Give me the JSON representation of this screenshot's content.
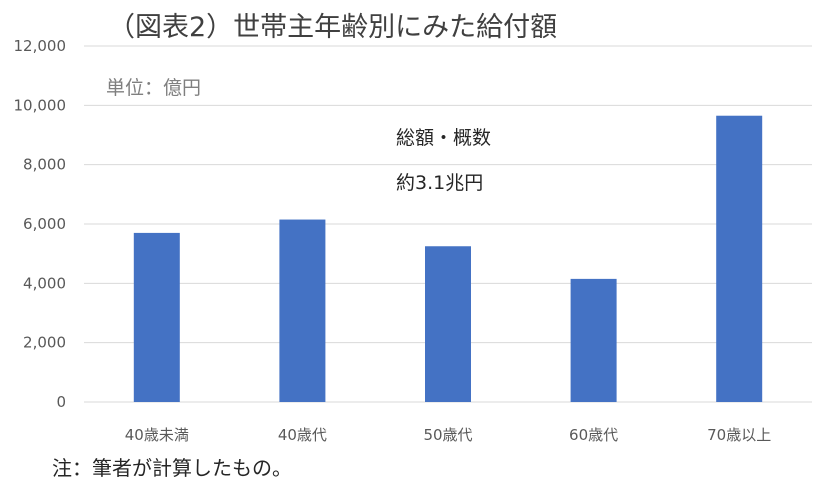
{
  "chart_data": {
    "type": "bar",
    "title": "（図表2）世帯主年齢別にみた給付額",
    "unit_label": "単位：億円",
    "annotation_line1": "総額・概数",
    "annotation_line2": "約3.1兆円",
    "categories": [
      "40歳未満",
      "40歳代",
      "50歳代",
      "60歳代",
      "70歳以上"
    ],
    "values": [
      5700,
      6150,
      5250,
      4150,
      9650
    ],
    "ylim": [
      0,
      12000
    ],
    "yticks": [
      "0",
      "2,000",
      "4,000",
      "6,000",
      "8,000",
      "10,000",
      "12,000"
    ],
    "grid": true,
    "bar_color": "#4472c4",
    "grid_color": "#d9d9d9"
  },
  "footnote": "注：筆者が計算したもの。"
}
